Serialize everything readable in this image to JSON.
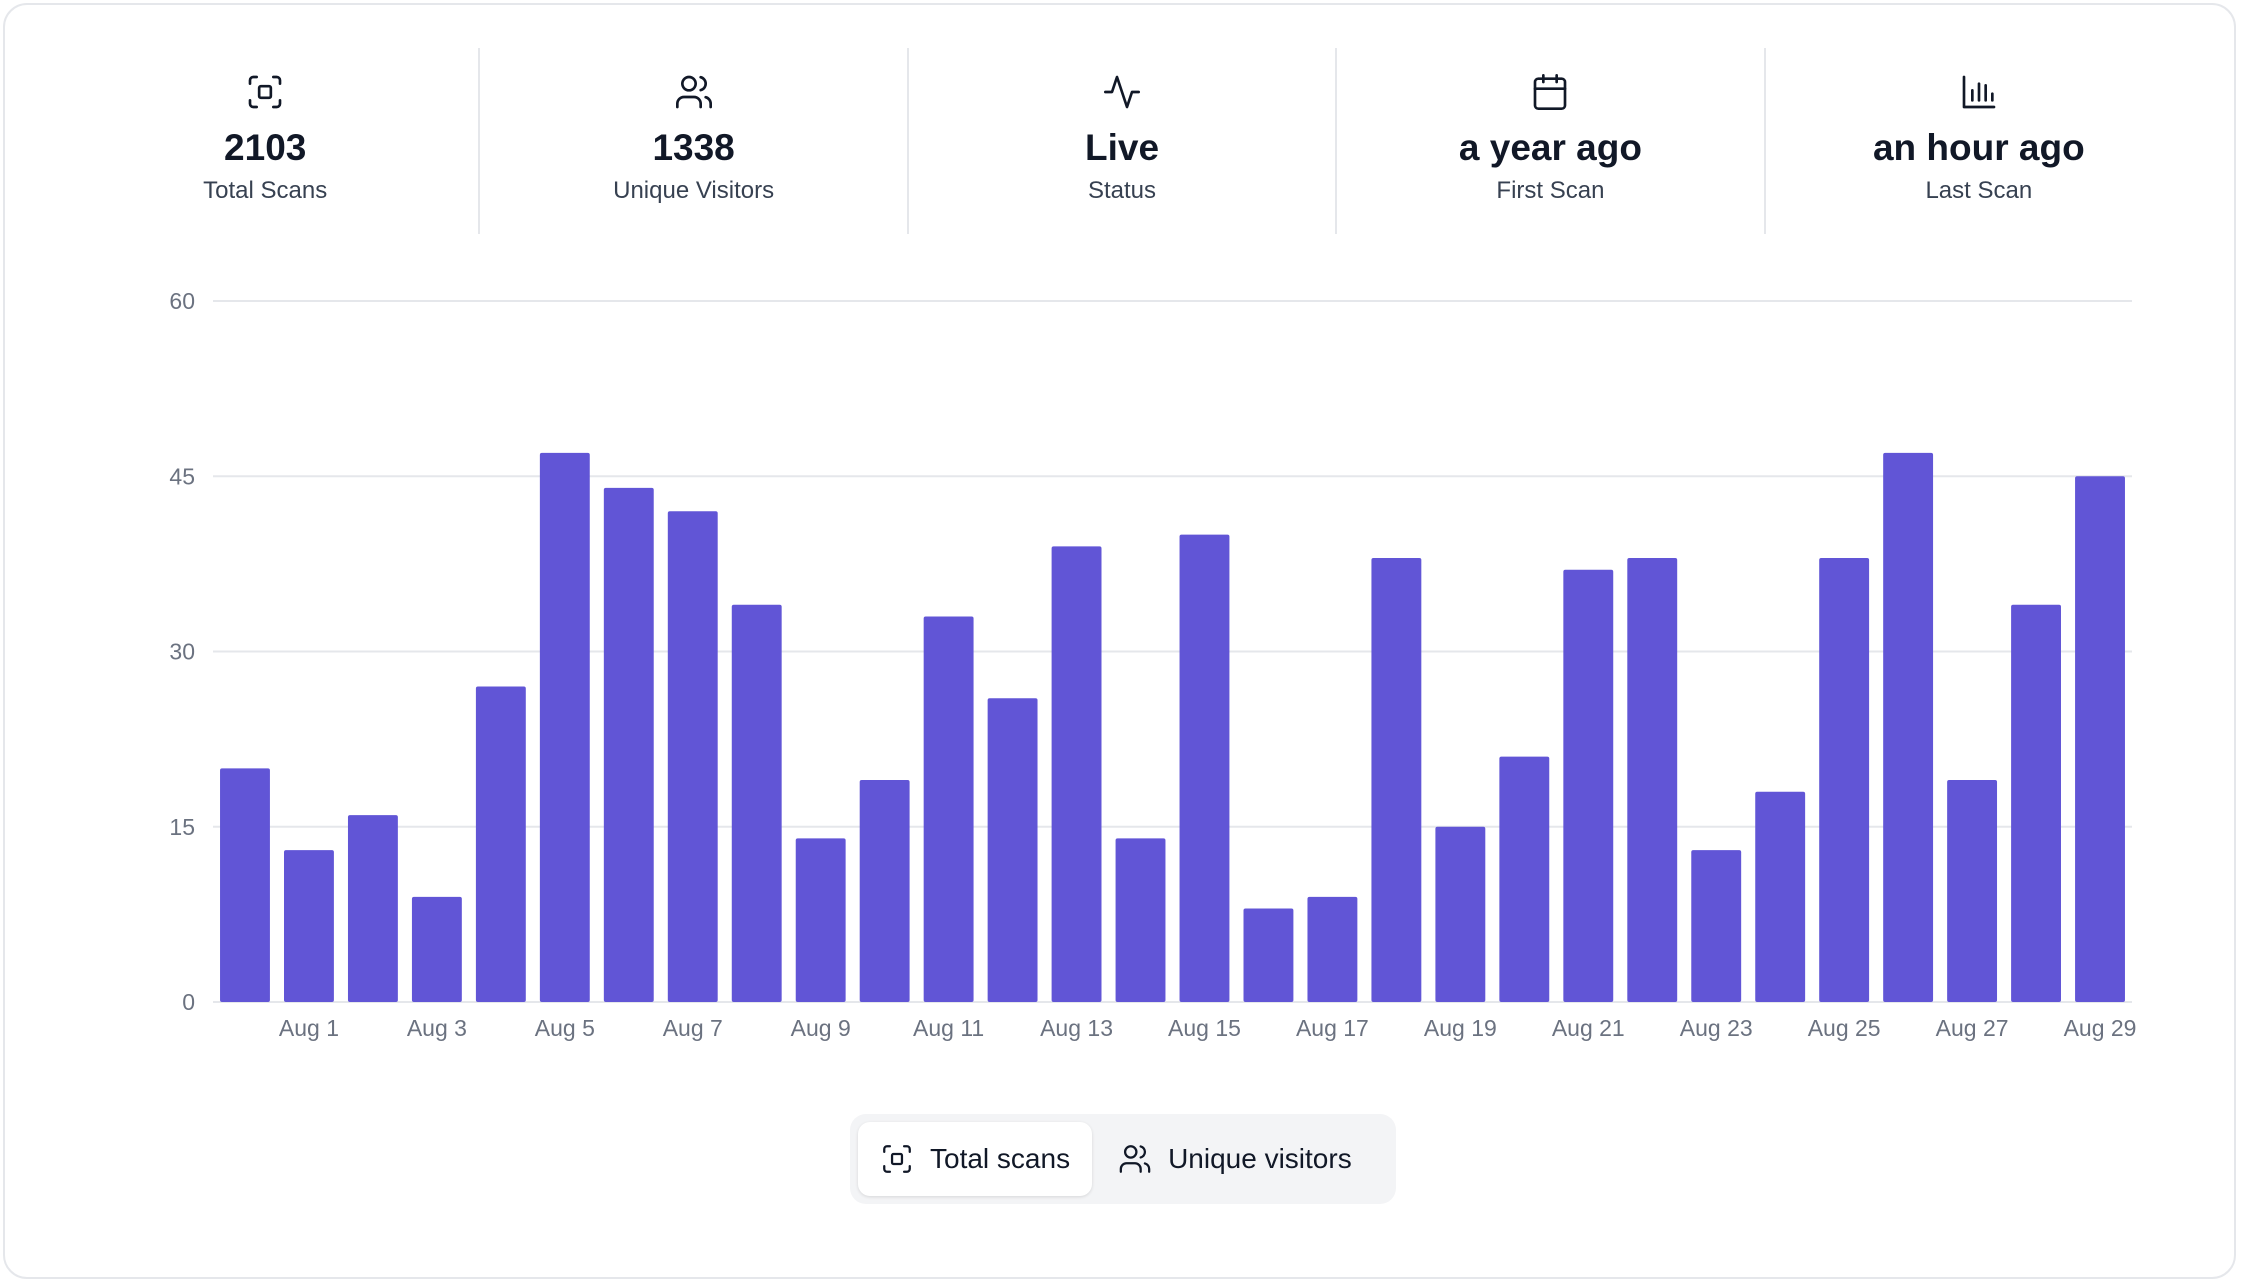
{
  "stats": [
    {
      "icon": "scan-icon",
      "value": "2103",
      "label": "Total Scans"
    },
    {
      "icon": "users-icon",
      "value": "1338",
      "label": "Unique Visitors"
    },
    {
      "icon": "activity-icon",
      "value": "Live",
      "label": "Status"
    },
    {
      "icon": "calendar-icon",
      "value": "a year ago",
      "label": "First Scan"
    },
    {
      "icon": "bar-chart-icon",
      "value": "an hour ago",
      "label": "Last Scan"
    }
  ],
  "toggle": {
    "total_scans_label": "Total scans",
    "unique_visitors_label": "Unique visitors",
    "selected": "Total scans"
  },
  "colors": {
    "bar": "#6155d6",
    "grid": "#e5e7eb",
    "axis_text": "#6b7280"
  },
  "chart_data": {
    "type": "bar",
    "categories": [
      "Jul 31",
      "Aug 1",
      "Aug 2",
      "Aug 3",
      "Aug 4",
      "Aug 5",
      "Aug 6",
      "Aug 7",
      "Aug 8",
      "Aug 9",
      "Aug 10",
      "Aug 11",
      "Aug 12",
      "Aug 13",
      "Aug 14",
      "Aug 15",
      "Aug 16",
      "Aug 17",
      "Aug 18",
      "Aug 19",
      "Aug 20",
      "Aug 21",
      "Aug 22",
      "Aug 23",
      "Aug 24",
      "Aug 25",
      "Aug 26",
      "Aug 27",
      "Aug 28",
      "Aug 29"
    ],
    "x_tick_labels": [
      "Aug 1",
      "Aug 3",
      "Aug 5",
      "Aug 7",
      "Aug 9",
      "Aug 11",
      "Aug 13",
      "Aug 15",
      "Aug 17",
      "Aug 19",
      "Aug 21",
      "Aug 23",
      "Aug 25",
      "Aug 27",
      "Aug 29"
    ],
    "series": [
      {
        "values": [
          20,
          13,
          16,
          9,
          27,
          47,
          44,
          42,
          34,
          14,
          19,
          33,
          26,
          39,
          14,
          40,
          8,
          9,
          38,
          15,
          21,
          37,
          38,
          13,
          18,
          38,
          47,
          19,
          34,
          45
        ]
      }
    ],
    "y_ticks": [
      "0",
      "15",
      "30",
      "45",
      "60"
    ],
    "ylim": [
      0,
      60
    ],
    "grid": true,
    "legend": "none"
  }
}
